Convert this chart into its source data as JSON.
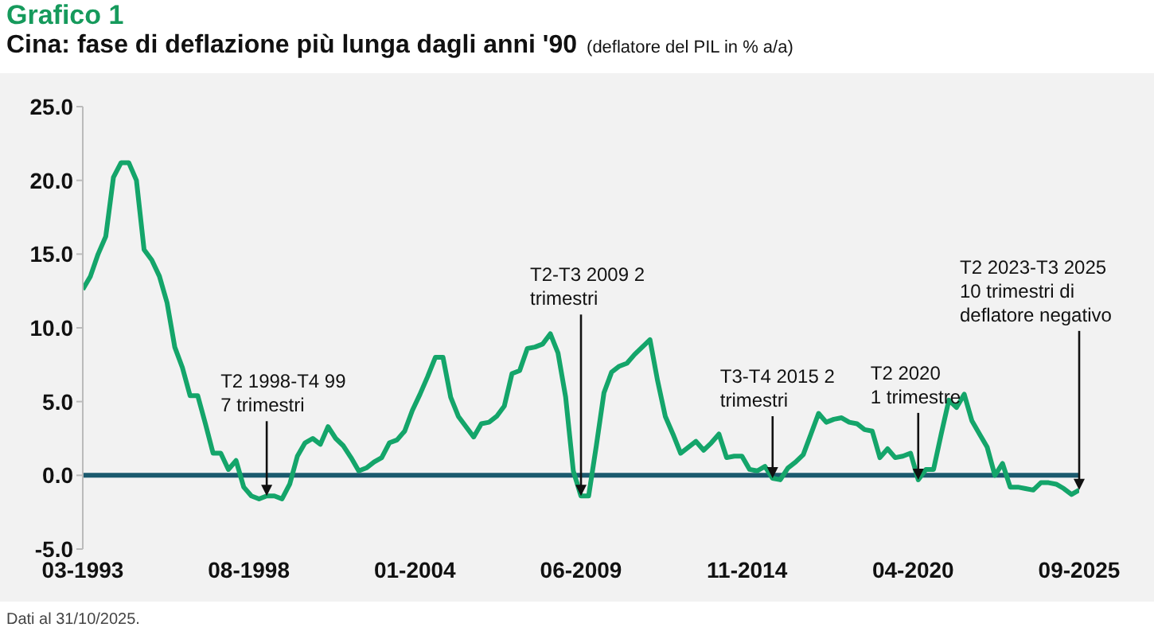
{
  "chart_data": {
    "type": "line",
    "title": "Grafico 1",
    "subtitle": "Cina: fase di deflazione più lunga dagli anni '90",
    "ylabel": "(deflatore del PIL in % a/a)",
    "x": [
      "1993-03",
      "1993-06",
      "1993-09",
      "1993-12",
      "1994-03",
      "1994-06",
      "1994-09",
      "1994-12",
      "1995-03",
      "1995-06",
      "1995-09",
      "1995-12",
      "1996-03",
      "1996-06",
      "1996-09",
      "1996-12",
      "1997-03",
      "1997-06",
      "1997-09",
      "1997-12",
      "1998-03",
      "1998-06",
      "1998-09",
      "1998-12",
      "1999-03",
      "1999-06",
      "1999-09",
      "1999-12",
      "2000-03",
      "2000-06",
      "2000-09",
      "2000-12",
      "2001-03",
      "2001-06",
      "2001-09",
      "2001-12",
      "2002-03",
      "2002-06",
      "2002-09",
      "2002-12",
      "2003-03",
      "2003-06",
      "2003-09",
      "2003-12",
      "2004-03",
      "2004-06",
      "2004-09",
      "2004-12",
      "2005-03",
      "2005-06",
      "2005-09",
      "2005-12",
      "2006-03",
      "2006-06",
      "2006-09",
      "2006-12",
      "2007-03",
      "2007-06",
      "2007-09",
      "2007-12",
      "2008-03",
      "2008-06",
      "2008-09",
      "2008-12",
      "2009-03",
      "2009-06",
      "2009-09",
      "2009-12",
      "2010-03",
      "2010-06",
      "2010-09",
      "2010-12",
      "2011-03",
      "2011-06",
      "2011-09",
      "2011-12",
      "2012-03",
      "2012-06",
      "2012-09",
      "2012-12",
      "2013-03",
      "2013-06",
      "2013-09",
      "2013-12",
      "2014-03",
      "2014-06",
      "2014-09",
      "2014-12",
      "2015-03",
      "2015-06",
      "2015-09",
      "2015-12",
      "2016-03",
      "2016-06",
      "2016-09",
      "2016-12",
      "2017-03",
      "2017-06",
      "2017-09",
      "2017-12",
      "2018-03",
      "2018-06",
      "2018-09",
      "2018-12",
      "2019-03",
      "2019-06",
      "2019-09",
      "2019-12",
      "2020-03",
      "2020-06",
      "2020-09",
      "2020-12",
      "2021-03",
      "2021-06",
      "2021-09",
      "2021-12",
      "2022-03",
      "2022-06",
      "2022-09",
      "2022-12",
      "2023-03",
      "2023-06",
      "2023-09",
      "2023-12",
      "2024-03",
      "2024-06",
      "2024-09",
      "2024-12",
      "2025-03",
      "2025-06",
      "2025-09"
    ],
    "series": [
      {
        "color": "#14a56a",
        "values": [
          12.6,
          13.5,
          15.0,
          16.2,
          20.2,
          21.2,
          21.2,
          20.0,
          15.3,
          14.6,
          13.5,
          11.7,
          8.7,
          7.3,
          5.4,
          5.4,
          3.5,
          1.5,
          1.5,
          0.4,
          1.0,
          -0.8,
          -1.4,
          -1.6,
          -1.4,
          -1.4,
          -1.6,
          -0.6,
          1.3,
          2.2,
          2.5,
          2.1,
          3.3,
          2.5,
          2.0,
          1.2,
          0.3,
          0.5,
          0.9,
          1.2,
          2.2,
          2.4,
          3.0,
          4.4,
          5.5,
          6.7,
          8.0,
          8.0,
          5.3,
          4.0,
          3.3,
          2.6,
          3.5,
          3.6,
          4.0,
          4.7,
          6.9,
          7.1,
          8.6,
          8.7,
          8.9,
          9.6,
          8.3,
          5.3,
          0.3,
          -1.4,
          -1.4,
          2.0,
          5.6,
          7.0,
          7.4,
          7.6,
          8.2,
          8.7,
          9.2,
          6.4,
          4.0,
          2.8,
          1.5,
          1.9,
          2.3,
          1.7,
          2.2,
          2.8,
          1.2,
          1.3,
          1.3,
          0.4,
          0.3,
          0.6,
          -0.2,
          -0.3,
          0.5,
          0.9,
          1.4,
          2.8,
          4.2,
          3.6,
          3.8,
          3.9,
          3.6,
          3.5,
          3.1,
          3.0,
          1.2,
          1.8,
          1.2,
          1.3,
          1.5,
          -0.3,
          0.4,
          0.4,
          2.8,
          5.1,
          4.6,
          5.5,
          3.7,
          2.8,
          1.9,
          0.0,
          0.8,
          -0.8,
          -0.8,
          -0.9,
          -1.0,
          -0.5,
          -0.5,
          -0.6,
          -0.9,
          -1.3,
          -1.0
        ]
      }
    ],
    "xlim": [
      "1993-03",
      "2025-09"
    ],
    "xticks": [
      {
        "value": "1993-03",
        "label": "03-1993"
      },
      {
        "value": "1998-08",
        "label": "08-1998"
      },
      {
        "value": "2004-01",
        "label": "01-2004"
      },
      {
        "value": "2009-06",
        "label": "06-2009"
      },
      {
        "value": "2014-11",
        "label": "11-2014"
      },
      {
        "value": "2020-04",
        "label": "04-2020"
      },
      {
        "value": "2025-09",
        "label": "09-2025"
      }
    ],
    "ylim": [
      -5,
      25
    ],
    "yticks": [
      {
        "value": -5,
        "label": "-5.0"
      },
      {
        "value": 0,
        "label": "0.0"
      },
      {
        "value": 5,
        "label": "5.0"
      },
      {
        "value": 10,
        "label": "10.0"
      },
      {
        "value": 15,
        "label": "15.0"
      },
      {
        "value": 20,
        "label": "20.0"
      },
      {
        "value": 25,
        "label": "25.0"
      }
    ],
    "ref_lines": [
      {
        "axis": "y",
        "value": 0,
        "color": "#1b5a6e"
      }
    ],
    "annotations": [
      {
        "text": "T2 1998-T4 99\n7 trimestri",
        "x": "1999-03",
        "y": -1.4
      },
      {
        "text": "T2-T3 2009 2\ntrimestri",
        "x": "2009-06",
        "y": -1.4
      },
      {
        "text": "T3-T4 2015 2\ntrimestri",
        "x": "2015-09",
        "y": -0.2
      },
      {
        "text": "T2 2020\n1 trimestre",
        "x": "2020-06",
        "y": -0.3
      },
      {
        "text": "T2 2023-T3 2025\n10 trimestri di\ndeflatore negativo",
        "x": "2025-09",
        "y": -1.0
      },
      "Dati al 31/10/2025."
    ]
  }
}
